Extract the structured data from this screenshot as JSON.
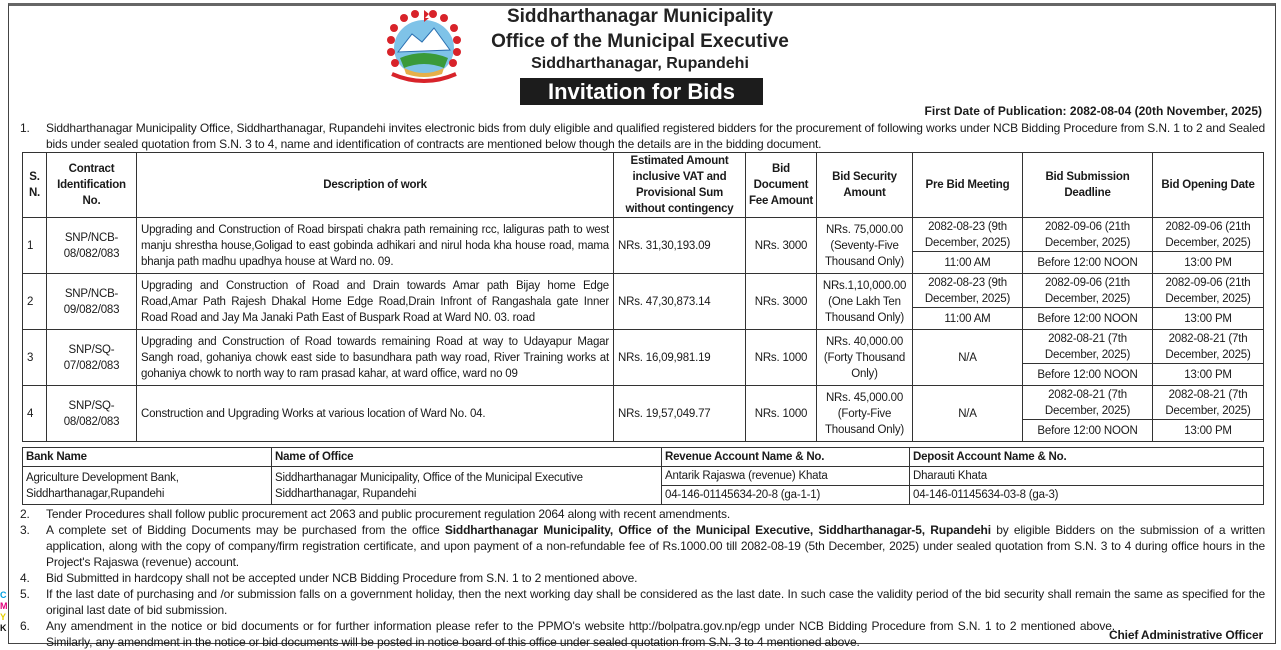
{
  "header": {
    "line1": "Siddharthanagar Municipality",
    "line2": "Office of the Municipal Executive",
    "line3": "Siddharthanagar, Rupandehi",
    "banner": "Invitation for Bids",
    "publication": "First Date of Publication: 2082-08-04 (20th November, 2025)"
  },
  "intro": {
    "num": "1.",
    "text": "Siddharthanagar Municipality Office, Siddharthanagar, Rupandehi invites electronic bids from duly eligible and qualified registered bidders for the procurement of following works under NCB Bidding Procedure from S.N. 1 to 2 and Sealed bids under sealed quotation from S.N. 3 to 4, name and identification of contracts are mentioned below though the details are in the bidding document."
  },
  "table": {
    "headers": [
      "S. N.",
      "Contract Identification No.",
      "Description of work",
      "Estimated Amount inclusive VAT and Provisional Sum without contingency",
      "Bid Document Fee Amount",
      "Bid Security Amount",
      "Pre Bid Meeting",
      "Bid Submission Deadline",
      "Bid Opening Date"
    ],
    "rows": [
      {
        "sn": "1",
        "id": "SNP/NCB-08/082/083",
        "desc": "Upgrading and Construction of Road birspati chakra path remaining rcc, laliguras path to west manju shrestha house,Goligad to east gobinda adhikari and  nirul hoda kha house road,  mama bhanja path madhu upadhya house at  Ward no. 09.",
        "amount": "NRs. 31,30,193.09",
        "fee": "NRs. 3000",
        "security": "NRs. 75,000.00 (Seventy-Five Thousand Only)",
        "prebid_date": "2082-08-23 (9th December, 2025)",
        "prebid_time": "11:00 AM",
        "sub_date": "2082-09-06 (21th December, 2025)",
        "sub_time": "Before 12:00 NOON",
        "open_date": "2082-09-06 (21th December, 2025)",
        "open_time": "13:00 PM"
      },
      {
        "sn": "2",
        "id": "SNP/NCB-09/082/083",
        "desc": "Upgrading and Construction of Road and Drain towards Amar path Bijay home Edge Road,Amar Path Rajesh Dhakal Home Edge Road,Drain  Infront of Rangashala gate Inner Road  Road and Jay Ma Janaki Path East of Buspark Road at Ward N0. 03. road",
        "amount": "NRs. 47,30,873.14",
        "fee": "NRs. 3000",
        "security": "NRs.1,10,000.00 (One Lakh Ten Thousand Only)",
        "prebid_date": "2082-08-23 (9th December, 2025)",
        "prebid_time": "11:00 AM",
        "sub_date": "2082-09-06 (21th December, 2025)",
        "sub_time": "Before 12:00 NOON",
        "open_date": "2082-09-06 (21th December, 2025)",
        "open_time": "13:00 PM"
      },
      {
        "sn": "3",
        "id": "SNP/SQ-07/082/083",
        "desc": "Upgrading and Construction of Road towards remaining Road at way to Udayapur Magar Sangh road, gohaniya chowk east side to basundhara path way road, River Training works at gohaniya chowk to north way to ram prasad kahar, at ward office, ward no 09",
        "amount": "NRs. 16,09,981.19",
        "fee": "NRs. 1000",
        "security": "NRs. 40,000.00 (Forty Thousand Only)",
        "prebid": "N/A",
        "sub_date": "2082-08-21 (7th December, 2025)",
        "sub_time": "Before 12:00 NOON",
        "open_date": "2082-08-21 (7th December, 2025)",
        "open_time": "13:00 PM"
      },
      {
        "sn": "4",
        "id": "SNP/SQ-08/082/083",
        "desc": "Construction and Upgrading Works at various location of Ward No. 04.",
        "amount": "NRs. 19,57,049.77",
        "fee": "NRs. 1000",
        "security": "NRs. 45,000.00 (Forty-Five Thousand Only)",
        "prebid": "N/A",
        "sub_date": "2082-08-21 (7th December, 2025)",
        "sub_time": "Before 12:00 NOON",
        "open_date": "2082-08-21 (7th December, 2025)",
        "open_time": "13:00 PM"
      }
    ]
  },
  "bank": {
    "headers": [
      "Bank Name",
      "Name of Office",
      "Revenue Account Name & No.",
      "Deposit Account Name & No."
    ],
    "bank_name": "Agriculture Development Bank, Siddharthanagar,Rupandehi",
    "office_line1": "Siddharthanagar Municipality, Office of the Municipal Executive",
    "office_line2": "Siddharthanagar, Rupandehi",
    "revenue_name": "Antarik Rajaswa (revenue) Khata",
    "revenue_no": "04-146-01145634-20-8 (ga-1-1)",
    "deposit_name": "Dharauti Khata",
    "deposit_no": "04-146-01145634-03-8 (ga-3)"
  },
  "notes": [
    {
      "num": "2.",
      "text": "Tender Procedures shall follow public procurement act 2063 and public procurement regulation 2064 along with recent amendments."
    },
    {
      "num": "3.",
      "pre": "A complete set of Bidding Documents may be purchased from the office ",
      "bold": "Siddharthanagar Municipality, Office of the Municipal Executive, Siddharthanagar-5, Rupandehi",
      "post": " by eligible Bidders on the submission of a written application, along with the copy of company/firm registration certificate, and upon payment of a non-refundable fee of Rs.1000.00 till 2082-08-19 (5th December, 2025) under sealed quotation from S.N. 3 to 4 during office hours in the Project's Rajaswa (revenue) account."
    },
    {
      "num": "4.",
      "text": "Bid Submitted in hardcopy shall not be accepted under NCB Bidding Procedure from S.N. 1 to 2 mentioned above."
    },
    {
      "num": "5.",
      "text": "If the last date of purchasing and /or submission falls on a government holiday, then the next working day shall be considered as the last date. In such case the validity period of the bid security shall remain the same as specified for the original last date of bid submission."
    },
    {
      "num": "6.",
      "text": "Any amendment in the notice or bid documents or for further information please refer to the PPMO's website http://bolpatra.gov.np/egp under NCB Bidding Procedure from S.N. 1 to 2 mentioned above. Similarly, any amendment in the notice or bid documents will be posted in notice board of this office under sealed quotation from S.N. 3 to 4 mentioned above."
    }
  ],
  "signature": "Chief Administrative Officer",
  "print_marks": [
    "C",
    "M",
    "Y",
    "K"
  ],
  "colors": {
    "banner_bg": "#1c1c1c",
    "emblem_red": "#d8232a"
  }
}
